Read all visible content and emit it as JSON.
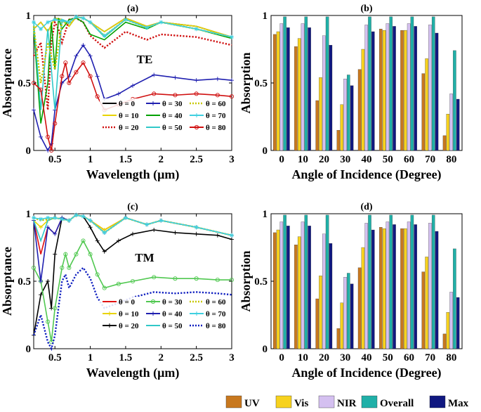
{
  "chart_data": [
    {
      "id": "a",
      "type": "line",
      "title": "(a)",
      "annotation": "TE",
      "xlabel": "Wavelength (μm)",
      "ylabel": "Absorptance",
      "xlim": [
        0.2,
        3
      ],
      "ylim": [
        0,
        1
      ],
      "xticks": [
        "0.5",
        "1",
        "1.5",
        "2",
        "2.5",
        "3"
      ],
      "yticks": [
        "0",
        "0.5",
        "1"
      ],
      "legend_location": "lower-right",
      "series": [
        {
          "name": "θ = 0",
          "color": "#000000",
          "style": "solid",
          "marker": "none",
          "x": [
            0.2,
            0.3,
            0.4,
            0.5,
            0.6,
            0.7,
            0.8,
            0.9,
            1.0,
            1.2,
            1.5,
            1.8,
            2.0,
            2.5,
            3.0
          ],
          "y": [
            0.9,
            0.95,
            0.88,
            0.98,
            0.97,
            0.92,
            0.99,
            0.98,
            0.95,
            0.88,
            0.98,
            0.92,
            0.95,
            0.92,
            0.84
          ]
        },
        {
          "name": "θ = 10",
          "color": "#e8d400",
          "style": "solid",
          "marker": "none",
          "x": [
            0.2,
            0.3,
            0.4,
            0.5,
            0.6,
            0.7,
            0.8,
            0.9,
            1.0,
            1.2,
            1.5,
            1.8,
            2.0,
            2.5,
            3.0
          ],
          "y": [
            0.9,
            0.95,
            0.88,
            0.98,
            0.97,
            0.92,
            0.99,
            0.98,
            0.95,
            0.88,
            0.98,
            0.92,
            0.95,
            0.92,
            0.84
          ]
        },
        {
          "name": "θ = 20",
          "color": "#d01010",
          "style": "dotted",
          "marker": "none",
          "x": [
            0.2,
            0.3,
            0.4,
            0.45,
            0.5,
            0.55,
            0.6,
            0.7,
            0.8,
            0.9,
            1.0,
            1.2,
            1.5,
            1.8,
            2.0,
            2.5,
            3.0
          ],
          "y": [
            0.7,
            0.8,
            0.3,
            0.8,
            0.95,
            0.9,
            0.8,
            0.97,
            0.98,
            0.95,
            0.85,
            0.76,
            0.88,
            0.82,
            0.86,
            0.84,
            0.78
          ]
        },
        {
          "name": "θ = 30",
          "color": "#2020b0",
          "style": "solid",
          "marker": "plus",
          "x": [
            0.2,
            0.3,
            0.4,
            0.45,
            0.5,
            0.6,
            0.7,
            0.8,
            0.9,
            1.0,
            1.1,
            1.2,
            1.4,
            1.6,
            1.9,
            2.2,
            2.5,
            2.8,
            3.0
          ],
          "y": [
            0.3,
            0.1,
            0.0,
            0.05,
            0.3,
            0.5,
            0.55,
            0.7,
            0.78,
            0.7,
            0.55,
            0.38,
            0.42,
            0.48,
            0.56,
            0.54,
            0.52,
            0.53,
            0.52
          ]
        },
        {
          "name": "θ = 40",
          "color": "#00a000",
          "style": "solid",
          "marker": "none",
          "x": [
            0.2,
            0.3,
            0.4,
            0.45,
            0.5,
            0.55,
            0.6,
            0.7,
            0.8,
            0.9,
            1.0,
            1.2,
            1.5,
            1.8,
            2.0,
            2.5,
            3.0
          ],
          "y": [
            0.9,
            0.2,
            0.5,
            0.95,
            0.6,
            0.98,
            0.9,
            0.97,
            0.98,
            0.95,
            0.86,
            0.82,
            0.95,
            0.9,
            0.95,
            0.9,
            0.83
          ]
        },
        {
          "name": "θ = 50",
          "color": "#30c8c8",
          "style": "solid",
          "marker": "none",
          "x": [
            0.2,
            0.3,
            0.4,
            0.5,
            0.6,
            0.7,
            0.8,
            0.9,
            1.0,
            1.2,
            1.5,
            1.8,
            2.0,
            2.5,
            3.0
          ],
          "y": [
            0.95,
            0.3,
            0.9,
            0.3,
            0.97,
            0.95,
            0.99,
            0.98,
            0.95,
            0.84,
            0.97,
            0.91,
            0.95,
            0.9,
            0.84
          ]
        },
        {
          "name": "θ = 60",
          "color": "#c8c800",
          "style": "dotted",
          "marker": "none",
          "x": [
            0.2,
            0.3,
            0.4,
            0.5,
            0.6,
            0.7,
            0.8,
            0.9,
            1.0,
            1.2,
            1.5,
            1.8,
            2.0,
            2.5,
            3.0
          ],
          "y": [
            0.92,
            0.5,
            0.8,
            0.6,
            0.95,
            0.94,
            0.99,
            0.98,
            0.95,
            0.85,
            0.97,
            0.91,
            0.95,
            0.9,
            0.84
          ]
        },
        {
          "name": "θ = 70",
          "color": "#40d0e0",
          "style": "solid",
          "marker": "star",
          "x": [
            0.2,
            0.3,
            0.4,
            0.5,
            0.6,
            0.7,
            0.8,
            0.9,
            1.0,
            1.2,
            1.5,
            1.8,
            2.0,
            2.5,
            3.0
          ],
          "y": [
            0.95,
            0.9,
            0.95,
            0.97,
            0.96,
            0.95,
            0.99,
            0.98,
            0.95,
            0.85,
            0.97,
            0.91,
            0.95,
            0.9,
            0.84
          ]
        },
        {
          "name": "θ = 80",
          "color": "#d01010",
          "style": "solid",
          "marker": "circle",
          "x": [
            0.2,
            0.3,
            0.4,
            0.45,
            0.5,
            0.6,
            0.65,
            0.7,
            0.8,
            0.9,
            1.0,
            1.1,
            1.2,
            1.4,
            1.6,
            1.9,
            2.2,
            2.5,
            2.8,
            3.0
          ],
          "y": [
            0.5,
            0.45,
            0.1,
            0.0,
            0.2,
            0.55,
            0.65,
            0.5,
            0.58,
            0.65,
            0.55,
            0.4,
            0.3,
            0.34,
            0.38,
            0.42,
            0.41,
            0.42,
            0.41,
            0.4
          ]
        }
      ]
    },
    {
      "id": "b",
      "type": "bar",
      "title": "(b)",
      "xlabel": "Angle of Incidence (Degree)",
      "ylabel": "Absorption",
      "ylim": [
        0,
        1
      ],
      "yticks": [
        "0",
        "0.5",
        "1"
      ],
      "categories": [
        "0",
        "10",
        "20",
        "30",
        "40",
        "50",
        "60",
        "70",
        "80"
      ],
      "series": [
        {
          "name": "UV",
          "color": "#c8781e",
          "values": [
            0.86,
            0.77,
            0.37,
            0.15,
            0.6,
            0.9,
            0.89,
            0.57,
            0.11
          ]
        },
        {
          "name": "Vis",
          "color": "#f7d21e",
          "values": [
            0.88,
            0.83,
            0.54,
            0.34,
            0.75,
            0.89,
            0.89,
            0.68,
            0.27
          ]
        },
        {
          "name": "NIR",
          "color": "#d4c0f0",
          "values": [
            0.94,
            0.94,
            0.85,
            0.53,
            0.93,
            0.94,
            0.94,
            0.93,
            0.42
          ]
        },
        {
          "name": "Overall",
          "color": "#20b0a8",
          "values": [
            0.99,
            0.99,
            0.99,
            0.56,
            0.99,
            0.99,
            0.99,
            0.99,
            0.74
          ]
        },
        {
          "name": "Max",
          "color": "#101880",
          "values": [
            0.91,
            0.91,
            0.78,
            0.48,
            0.88,
            0.92,
            0.92,
            0.87,
            0.38
          ]
        }
      ]
    },
    {
      "id": "c",
      "type": "line",
      "title": "(c)",
      "annotation": "TM",
      "xlabel": "Wavelength (μm)",
      "ylabel": "Absorptance",
      "xlim": [
        0.2,
        3
      ],
      "ylim": [
        0,
        1
      ],
      "xticks": [
        "0.5",
        "1",
        "1.5",
        "2",
        "2.5",
        "3"
      ],
      "yticks": [
        "0",
        "0.5",
        "1"
      ],
      "legend_location": "lower-right",
      "series": [
        {
          "name": "θ = 0",
          "color": "#e01010",
          "style": "solid",
          "marker": "none",
          "x": [
            0.2,
            0.3,
            0.4,
            0.5,
            0.6,
            0.7,
            0.8,
            0.9,
            1.0,
            1.2,
            1.5,
            1.8,
            2.0,
            2.5,
            3.0
          ],
          "y": [
            0.95,
            0.7,
            0.9,
            0.85,
            0.97,
            0.95,
            0.99,
            0.98,
            0.95,
            0.88,
            0.97,
            0.92,
            0.95,
            0.9,
            0.84
          ]
        },
        {
          "name": "θ = 10",
          "color": "#e8d400",
          "style": "solid",
          "marker": "plus",
          "x": [
            0.2,
            0.3,
            0.4,
            0.5,
            0.6,
            0.7,
            0.8,
            0.9,
            1.0,
            1.2,
            1.5,
            1.8,
            2.0,
            2.5,
            3.0
          ],
          "y": [
            0.95,
            0.9,
            0.95,
            0.97,
            0.96,
            0.95,
            0.99,
            0.98,
            0.95,
            0.88,
            0.97,
            0.92,
            0.95,
            0.9,
            0.84
          ]
        },
        {
          "name": "θ = 20",
          "color": "#000000",
          "style": "solid",
          "marker": "plus",
          "x": [
            0.2,
            0.3,
            0.4,
            0.45,
            0.5,
            0.6,
            0.7,
            0.8,
            0.9,
            1.0,
            1.1,
            1.2,
            1.4,
            1.6,
            1.9,
            2.2,
            2.5,
            2.8,
            3.0
          ],
          "y": [
            0.1,
            0.4,
            0.5,
            0.3,
            0.7,
            0.97,
            0.95,
            0.99,
            0.98,
            0.9,
            0.8,
            0.72,
            0.8,
            0.85,
            0.88,
            0.86,
            0.85,
            0.84,
            0.81
          ]
        },
        {
          "name": "θ = 30",
          "color": "#50c850",
          "style": "solid",
          "marker": "circle",
          "x": [
            0.2,
            0.3,
            0.4,
            0.45,
            0.5,
            0.6,
            0.65,
            0.7,
            0.8,
            0.9,
            1.0,
            1.1,
            1.2,
            1.4,
            1.6,
            1.9,
            2.2,
            2.5,
            2.8,
            3.0
          ],
          "y": [
            0.6,
            0.5,
            0.2,
            0.05,
            0.3,
            0.6,
            0.7,
            0.6,
            0.7,
            0.8,
            0.7,
            0.55,
            0.45,
            0.48,
            0.5,
            0.53,
            0.52,
            0.52,
            0.51,
            0.51
          ]
        },
        {
          "name": "θ = 40",
          "color": "#2020b0",
          "style": "solid",
          "marker": "plus",
          "x": [
            0.2,
            0.3,
            0.4,
            0.5,
            0.6,
            0.7,
            0.8,
            0.9,
            1.0,
            1.2,
            1.5,
            1.8,
            2.0,
            2.5,
            3.0
          ],
          "y": [
            0.95,
            0.5,
            0.9,
            0.85,
            0.97,
            0.95,
            0.99,
            0.98,
            0.95,
            0.86,
            0.97,
            0.92,
            0.95,
            0.9,
            0.84
          ]
        },
        {
          "name": "θ = 50",
          "color": "#30c8c8",
          "style": "solid",
          "marker": "none",
          "x": [
            0.2,
            0.3,
            0.4,
            0.5,
            0.6,
            0.7,
            0.8,
            0.9,
            1.0,
            1.2,
            1.5,
            1.8,
            2.0,
            2.5,
            3.0
          ],
          "y": [
            0.95,
            0.8,
            0.95,
            0.97,
            0.96,
            0.95,
            0.99,
            0.98,
            0.95,
            0.86,
            0.97,
            0.92,
            0.95,
            0.9,
            0.84
          ]
        },
        {
          "name": "θ = 60",
          "color": "#c8c800",
          "style": "dotted",
          "marker": "none",
          "x": [
            0.2,
            0.3,
            0.4,
            0.5,
            0.6,
            0.7,
            0.8,
            0.9,
            1.0,
            1.2,
            1.5,
            1.8,
            2.0,
            2.5,
            3.0
          ],
          "y": [
            0.97,
            0.95,
            0.96,
            0.97,
            0.96,
            0.95,
            0.99,
            0.98,
            0.95,
            0.86,
            0.97,
            0.92,
            0.95,
            0.9,
            0.84
          ]
        },
        {
          "name": "θ = 70",
          "color": "#40d0e0",
          "style": "solid",
          "marker": "star",
          "x": [
            0.2,
            0.3,
            0.4,
            0.5,
            0.6,
            0.7,
            0.8,
            0.9,
            1.0,
            1.2,
            1.5,
            1.8,
            2.0,
            2.5,
            3.0
          ],
          "y": [
            0.97,
            0.96,
            0.97,
            0.97,
            0.96,
            0.95,
            0.99,
            0.98,
            0.95,
            0.86,
            0.97,
            0.92,
            0.95,
            0.9,
            0.84
          ]
        },
        {
          "name": "θ = 80",
          "color": "#1020c0",
          "style": "dotted",
          "marker": "none",
          "x": [
            0.2,
            0.3,
            0.4,
            0.45,
            0.5,
            0.6,
            0.65,
            0.7,
            0.8,
            0.9,
            1.0,
            1.1,
            1.2,
            1.4,
            1.6,
            1.9,
            2.2,
            2.5,
            2.8,
            3.0
          ],
          "y": [
            0.1,
            0.25,
            0.05,
            0.0,
            0.1,
            0.5,
            0.55,
            0.45,
            0.55,
            0.6,
            0.52,
            0.38,
            0.3,
            0.34,
            0.38,
            0.42,
            0.41,
            0.42,
            0.41,
            0.4
          ]
        }
      ]
    },
    {
      "id": "d",
      "type": "bar",
      "title": "(d)",
      "xlabel": "Angle of Incidence (Degree)",
      "ylabel": "Absorption",
      "ylim": [
        0,
        1
      ],
      "yticks": [
        "0",
        "0.5",
        "1"
      ],
      "categories": [
        "0",
        "10",
        "20",
        "30",
        "40",
        "50",
        "60",
        "70",
        "80"
      ],
      "series": [
        {
          "name": "UV",
          "color": "#c8781e",
          "values": [
            0.86,
            0.77,
            0.37,
            0.15,
            0.6,
            0.9,
            0.89,
            0.57,
            0.11
          ]
        },
        {
          "name": "Vis",
          "color": "#f7d21e",
          "values": [
            0.88,
            0.83,
            0.54,
            0.34,
            0.75,
            0.89,
            0.89,
            0.68,
            0.27
          ]
        },
        {
          "name": "NIR",
          "color": "#d4c0f0",
          "values": [
            0.94,
            0.94,
            0.85,
            0.53,
            0.93,
            0.94,
            0.94,
            0.93,
            0.42
          ]
        },
        {
          "name": "Overall",
          "color": "#20b0a8",
          "values": [
            0.99,
            0.99,
            0.99,
            0.56,
            0.99,
            0.99,
            0.99,
            0.99,
            0.74
          ]
        },
        {
          "name": "Max",
          "color": "#101880",
          "values": [
            0.91,
            0.91,
            0.78,
            0.48,
            0.88,
            0.92,
            0.92,
            0.87,
            0.38
          ]
        }
      ]
    }
  ],
  "bottom_legend": {
    "entries": [
      {
        "name": "UV",
        "color": "#c8781e"
      },
      {
        "name": "Vis",
        "color": "#f7d21e"
      },
      {
        "name": "NIR",
        "color": "#d4c0f0"
      },
      {
        "name": "Overall",
        "color": "#20b0a8"
      },
      {
        "name": "Max",
        "color": "#101880"
      }
    ]
  }
}
